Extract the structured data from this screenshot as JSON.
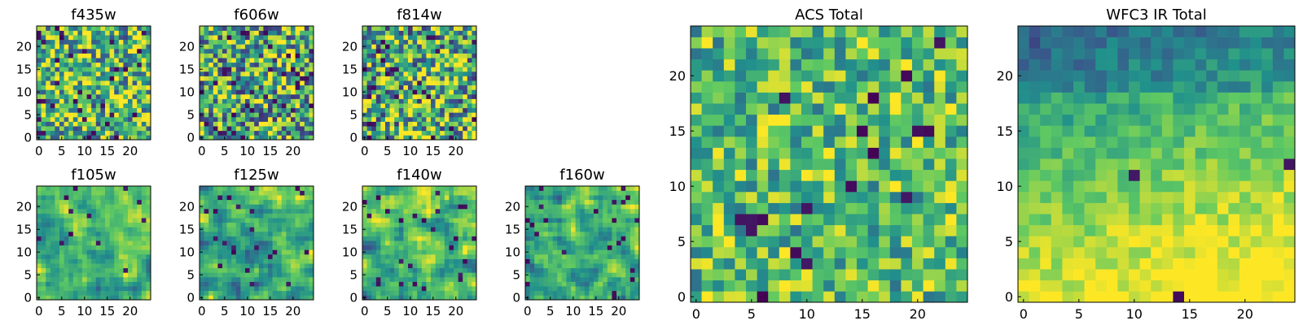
{
  "figure": {
    "description_free": true
  },
  "chart_data": [
    {
      "id": "f435w",
      "type": "heatmap",
      "title": "f435w",
      "grid_size": 25,
      "pattern": "noise",
      "seed": 11,
      "mean": 0.66,
      "spread": 0.55,
      "dark_fraction": 0.05,
      "xlim": [
        0,
        24
      ],
      "ylim": [
        0,
        24
      ],
      "xticks": [
        0,
        5,
        10,
        15,
        20
      ],
      "yticks": [
        0,
        5,
        10,
        15,
        20
      ],
      "colormap": [
        "#440154",
        "#3b528b",
        "#21918c",
        "#5ec962",
        "#fde725"
      ]
    },
    {
      "id": "f606w",
      "type": "heatmap",
      "title": "f606w",
      "grid_size": 25,
      "pattern": "noise",
      "seed": 23,
      "mean": 0.62,
      "spread": 0.6,
      "dark_fraction": 0.05,
      "xlim": [
        0,
        24
      ],
      "ylim": [
        0,
        24
      ],
      "xticks": [
        0,
        5,
        10,
        15,
        20
      ],
      "yticks": [
        0,
        5,
        10,
        15,
        20
      ],
      "colormap": [
        "#440154",
        "#3b528b",
        "#21918c",
        "#5ec962",
        "#fde725"
      ]
    },
    {
      "id": "f814w",
      "type": "heatmap",
      "title": "f814w",
      "grid_size": 25,
      "pattern": "noise",
      "seed": 37,
      "mean": 0.63,
      "spread": 0.6,
      "dark_fraction": 0.05,
      "xlim": [
        0,
        24
      ],
      "ylim": [
        0,
        24
      ],
      "xticks": [
        0,
        5,
        10,
        15,
        20
      ],
      "yticks": [
        0,
        5,
        10,
        15,
        20
      ],
      "colormap": [
        "#440154",
        "#3b528b",
        "#21918c",
        "#5ec962",
        "#fde725"
      ]
    },
    {
      "id": "f105w",
      "type": "heatmap",
      "title": "f105w",
      "grid_size": 25,
      "pattern": "smooth",
      "seed": 51,
      "mean": 0.68,
      "spread": 0.45,
      "dark_fraction": 0.02,
      "xlim": [
        0,
        24
      ],
      "ylim": [
        0,
        24
      ],
      "xticks": [
        0,
        5,
        10,
        15,
        20
      ],
      "yticks": [
        0,
        5,
        10,
        15,
        20
      ],
      "colormap": [
        "#440154",
        "#3b528b",
        "#21918c",
        "#5ec962",
        "#fde725"
      ]
    },
    {
      "id": "f125w",
      "type": "heatmap",
      "title": "f125w",
      "grid_size": 25,
      "pattern": "smooth",
      "seed": 63,
      "mean": 0.66,
      "spread": 0.5,
      "dark_fraction": 0.03,
      "xlim": [
        0,
        24
      ],
      "ylim": [
        0,
        24
      ],
      "xticks": [
        0,
        5,
        10,
        15,
        20
      ],
      "yticks": [
        0,
        5,
        10,
        15,
        20
      ],
      "colormap": [
        "#440154",
        "#3b528b",
        "#21918c",
        "#5ec962",
        "#fde725"
      ]
    },
    {
      "id": "f140w",
      "type": "heatmap",
      "title": "f140w",
      "grid_size": 25,
      "pattern": "smooth",
      "seed": 77,
      "mean": 0.64,
      "spread": 0.55,
      "dark_fraction": 0.04,
      "xlim": [
        0,
        24
      ],
      "ylim": [
        0,
        24
      ],
      "xticks": [
        0,
        5,
        10,
        15,
        20
      ],
      "yticks": [
        0,
        5,
        10,
        15,
        20
      ],
      "colormap": [
        "#440154",
        "#3b528b",
        "#21918c",
        "#5ec962",
        "#fde725"
      ]
    },
    {
      "id": "f160w",
      "type": "heatmap",
      "title": "f160w",
      "grid_size": 25,
      "pattern": "smooth",
      "seed": 89,
      "mean": 0.64,
      "spread": 0.55,
      "dark_fraction": 0.04,
      "xlim": [
        0,
        24
      ],
      "ylim": [
        0,
        24
      ],
      "xticks": [
        0,
        5,
        10,
        15,
        20
      ],
      "yticks": [
        0,
        5,
        10,
        15,
        20
      ],
      "colormap": [
        "#440154",
        "#3b528b",
        "#21918c",
        "#5ec962",
        "#fde725"
      ]
    },
    {
      "id": "acs_total",
      "type": "heatmap",
      "title": "ACS Total",
      "grid_size": 25,
      "pattern": "noise",
      "seed": 101,
      "mean": 0.7,
      "spread": 0.4,
      "dark_fraction": 0.03,
      "xlim": [
        0,
        24
      ],
      "ylim": [
        0,
        24
      ],
      "xticks": [
        0,
        5,
        10,
        15,
        20
      ],
      "yticks": [
        0,
        5,
        10,
        15,
        20
      ],
      "colormap": [
        "#440154",
        "#3b528b",
        "#21918c",
        "#5ec962",
        "#fde725"
      ]
    },
    {
      "id": "wfc3_ir_total",
      "type": "heatmap",
      "title": "WFC3 IR Total",
      "grid_size": 25,
      "pattern": "gradient",
      "seed": 131,
      "mean": 0.62,
      "spread": 0.25,
      "dark_fraction": 0.01,
      "xlim": [
        0,
        24
      ],
      "ylim": [
        0,
        24
      ],
      "xticks": [
        0,
        5,
        10,
        15,
        20
      ],
      "yticks": [
        0,
        5,
        10,
        15,
        20
      ],
      "colormap": [
        "#440154",
        "#3b528b",
        "#21918c",
        "#5ec962",
        "#fde725"
      ]
    }
  ]
}
